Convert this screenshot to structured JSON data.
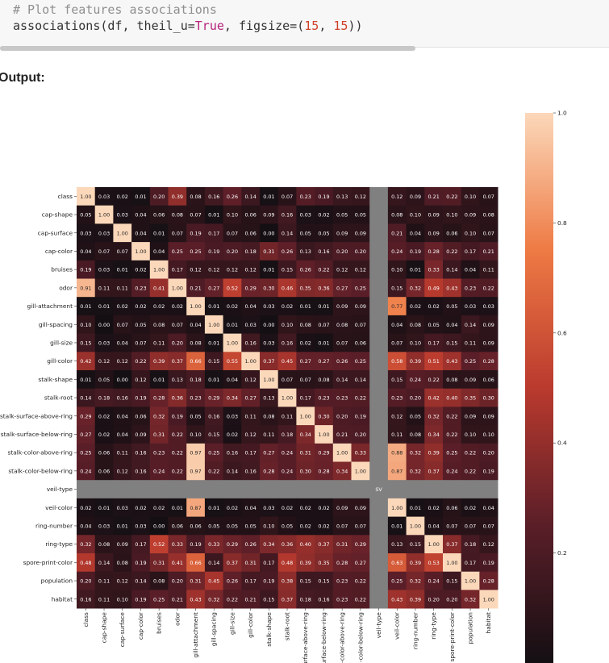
{
  "code": {
    "comment": "# Plot features associations",
    "fn": "associations(df, theil_u=",
    "kw": "True",
    "mid": ", figsize=(",
    "n1": "15",
    "sep": ", ",
    "n2": "15",
    "end": "))"
  },
  "output_label": "Output:",
  "chart_data": {
    "type": "heatmap",
    "title": "",
    "xlabel": "",
    "ylabel": "",
    "labels": [
      "class",
      "cap-shape",
      "cap-surface",
      "cap-color",
      "bruises",
      "odor",
      "gill-attachment",
      "gill-spacing",
      "gill-size",
      "gill-color",
      "stalk-shape",
      "stalk-root",
      "stalk-surface-above-ring",
      "stalk-surface-below-ring",
      "stalk-color-above-ring",
      "stalk-color-below-ring",
      "veil-type",
      "veil-color",
      "ring-number",
      "ring-type",
      "spore-print-color",
      "population",
      "habitat"
    ],
    "x_tick_labels": [
      "class",
      "cap-shape",
      "cap-surface",
      "cap-color",
      "bruises",
      "odor",
      "gill-attachment",
      "gill-spacing",
      "gill-size",
      "gill-color",
      "stalk-shape",
      "stalk-root",
      "urface-above-ring",
      "urface-below-ring",
      "-color-above-ring",
      "-color-below-ring",
      "veil-type",
      "veil-color",
      "ring-number",
      "ring-type",
      "spore-print-color",
      "population",
      "habitat"
    ],
    "values": [
      [
        1.0,
        0.03,
        0.02,
        0.01,
        0.2,
        0.39,
        0.08,
        0.16,
        0.26,
        0.14,
        0.01,
        0.07,
        0.23,
        0.19,
        0.13,
        0.12,
        null,
        0.12,
        0.09,
        0.21,
        0.22,
        0.1,
        0.07
      ],
      [
        0.05,
        1.0,
        0.03,
        0.04,
        0.06,
        0.08,
        0.07,
        0.01,
        0.1,
        0.06,
        0.09,
        0.16,
        0.03,
        0.02,
        0.05,
        0.05,
        null,
        0.08,
        0.1,
        0.09,
        0.1,
        0.09,
        0.08
      ],
      [
        0.03,
        0.03,
        1.0,
        0.04,
        0.01,
        0.07,
        0.19,
        0.17,
        0.07,
        0.06,
        0.0,
        0.14,
        0.05,
        0.05,
        0.09,
        0.09,
        null,
        0.21,
        0.04,
        0.09,
        0.06,
        0.1,
        0.07
      ],
      [
        0.04,
        0.07,
        0.07,
        1.0,
        0.04,
        0.25,
        0.25,
        0.19,
        0.2,
        0.18,
        0.31,
        0.26,
        0.13,
        0.16,
        0.2,
        0.2,
        null,
        0.24,
        0.19,
        0.28,
        0.22,
        0.17,
        0.21
      ],
      [
        0.19,
        0.03,
        0.01,
        0.02,
        1.0,
        0.17,
        0.12,
        0.12,
        0.12,
        0.12,
        0.01,
        0.15,
        0.26,
        0.22,
        0.12,
        0.12,
        null,
        0.1,
        0.01,
        0.33,
        0.14,
        0.04,
        0.11
      ],
      [
        0.91,
        0.11,
        0.11,
        0.23,
        0.41,
        1.0,
        0.21,
        0.27,
        0.52,
        0.29,
        0.3,
        0.46,
        0.35,
        0.36,
        0.27,
        0.25,
        null,
        0.15,
        0.32,
        0.49,
        0.43,
        0.23,
        0.22
      ],
      [
        0.01,
        0.01,
        0.02,
        0.02,
        0.02,
        0.02,
        1.0,
        0.01,
        0.02,
        0.04,
        0.03,
        0.02,
        0.01,
        0.01,
        0.09,
        0.09,
        null,
        0.77,
        0.02,
        0.02,
        0.05,
        0.03,
        0.03
      ],
      [
        0.1,
        0.0,
        0.07,
        0.05,
        0.08,
        0.07,
        0.04,
        1.0,
        0.01,
        0.03,
        0.0,
        0.1,
        0.08,
        0.07,
        0.08,
        0.07,
        null,
        0.04,
        0.08,
        0.05,
        0.04,
        0.14,
        0.09
      ],
      [
        0.15,
        0.03,
        0.04,
        0.07,
        0.11,
        0.2,
        0.08,
        0.01,
        1.0,
        0.16,
        0.03,
        0.16,
        0.02,
        0.01,
        0.07,
        0.06,
        null,
        0.07,
        0.1,
        0.17,
        0.15,
        0.11,
        0.09
      ],
      [
        0.42,
        0.12,
        0.12,
        0.22,
        0.39,
        0.37,
        0.66,
        0.15,
        0.55,
        1.0,
        0.37,
        0.45,
        0.27,
        0.27,
        0.26,
        0.25,
        null,
        0.58,
        0.39,
        0.51,
        0.43,
        0.25,
        0.28
      ],
      [
        0.01,
        0.05,
        0.0,
        0.12,
        0.01,
        0.13,
        0.18,
        0.01,
        0.04,
        0.12,
        1.0,
        0.07,
        0.07,
        0.08,
        0.14,
        0.14,
        null,
        0.15,
        0.24,
        0.22,
        0.08,
        0.09,
        0.06
      ],
      [
        0.14,
        0.18,
        0.16,
        0.19,
        0.28,
        0.36,
        0.23,
        0.29,
        0.34,
        0.27,
        0.13,
        1.0,
        0.17,
        0.23,
        0.23,
        0.22,
        null,
        0.23,
        0.2,
        0.42,
        0.4,
        0.35,
        0.3
      ],
      [
        0.29,
        0.02,
        0.04,
        0.06,
        0.32,
        0.19,
        0.05,
        0.16,
        0.03,
        0.11,
        0.08,
        0.11,
        1.0,
        0.3,
        0.2,
        0.19,
        null,
        0.12,
        0.05,
        0.32,
        0.22,
        0.09,
        0.09
      ],
      [
        0.27,
        0.02,
        0.04,
        0.09,
        0.31,
        0.22,
        0.1,
        0.15,
        0.02,
        0.12,
        0.11,
        0.18,
        0.34,
        1.0,
        0.21,
        0.2,
        null,
        0.11,
        0.08,
        0.34,
        0.22,
        0.1,
        0.1
      ],
      [
        0.25,
        0.06,
        0.11,
        0.16,
        0.23,
        0.22,
        0.97,
        0.25,
        0.16,
        0.17,
        0.27,
        0.24,
        0.31,
        0.29,
        1.0,
        0.33,
        null,
        0.88,
        0.32,
        0.39,
        0.25,
        0.22,
        0.2
      ],
      [
        0.24,
        0.06,
        0.12,
        0.16,
        0.24,
        0.22,
        0.97,
        0.22,
        0.14,
        0.16,
        0.28,
        0.24,
        0.3,
        0.28,
        0.34,
        1.0,
        null,
        0.87,
        0.32,
        0.37,
        0.24,
        0.22,
        0.19
      ],
      [
        null,
        null,
        null,
        null,
        null,
        null,
        null,
        null,
        null,
        null,
        null,
        null,
        null,
        null,
        null,
        null,
        null,
        null,
        null,
        null,
        null,
        null,
        null
      ],
      [
        0.02,
        0.01,
        0.03,
        0.02,
        0.02,
        0.01,
        0.87,
        0.01,
        0.02,
        0.04,
        0.03,
        0.02,
        0.02,
        0.02,
        0.09,
        0.09,
        null,
        1.0,
        0.01,
        0.02,
        0.06,
        0.02,
        0.04
      ],
      [
        0.04,
        0.03,
        0.01,
        0.03,
        0.0,
        0.06,
        0.06,
        0.05,
        0.05,
        0.05,
        0.1,
        0.05,
        0.02,
        0.02,
        0.07,
        0.07,
        null,
        0.01,
        1.0,
        0.04,
        0.07,
        0.07,
        0.07
      ],
      [
        0.32,
        0.08,
        0.09,
        0.17,
        0.52,
        0.33,
        0.19,
        0.33,
        0.29,
        0.26,
        0.34,
        0.36,
        0.4,
        0.37,
        0.31,
        0.29,
        null,
        0.13,
        0.15,
        1.0,
        0.37,
        0.18,
        0.12
      ],
      [
        0.48,
        0.14,
        0.08,
        0.19,
        0.31,
        0.41,
        0.66,
        0.14,
        0.37,
        0.31,
        0.17,
        0.48,
        0.39,
        0.35,
        0.28,
        0.27,
        null,
        0.63,
        0.39,
        0.53,
        1.0,
        0.17,
        0.19
      ],
      [
        0.2,
        0.11,
        0.12,
        0.14,
        0.08,
        0.2,
        0.31,
        0.45,
        0.26,
        0.17,
        0.19,
        0.38,
        0.15,
        0.15,
        0.23,
        0.22,
        null,
        0.25,
        0.32,
        0.24,
        0.15,
        1.0,
        0.28
      ],
      [
        0.16,
        0.11,
        0.1,
        0.19,
        0.25,
        0.21,
        0.43,
        0.32,
        0.22,
        0.21,
        0.15,
        0.37,
        0.18,
        0.16,
        0.23,
        0.22,
        null,
        0.43,
        0.39,
        0.2,
        0.2,
        0.32,
        1.0
      ]
    ],
    "nan_label": "SV",
    "colorbar": {
      "range": [
        0,
        1
      ],
      "ticks": [
        1.0,
        0.8,
        0.6,
        0.4,
        0.2
      ],
      "tick_labels": [
        "1.0",
        "0.8",
        "0.6",
        "0.4",
        "0.2"
      ]
    }
  }
}
